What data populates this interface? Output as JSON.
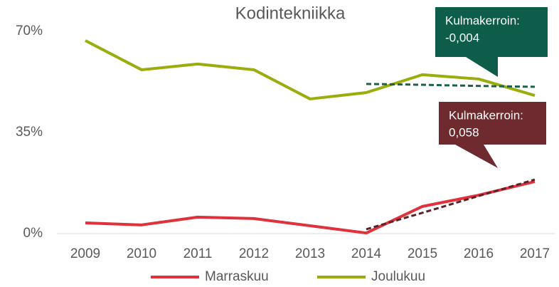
{
  "chart_data": {
    "type": "line",
    "title": "Kodintekniikka",
    "categories": [
      "2009",
      "2010",
      "2011",
      "2012",
      "2013",
      "2014",
      "2015",
      "2016",
      "2017"
    ],
    "series": [
      {
        "name": "Marraskuu",
        "color": "#e0323c",
        "values": [
          3.7,
          3.0,
          5.7,
          5.2,
          2.7,
          0.2,
          9.4,
          13.3,
          18.0
        ]
      },
      {
        "name": "Joulukuu",
        "color": "#9aad0d",
        "values": [
          66.8,
          56.7,
          58.7,
          56.7,
          46.6,
          48.8,
          55.0,
          53.5,
          47.8
        ]
      }
    ],
    "trendlines": [
      {
        "color": "#1d5f4a",
        "values": [
          null,
          null,
          null,
          null,
          null,
          51.8,
          51.5,
          51.1,
          50.8
        ]
      },
      {
        "color": "#5a2328",
        "values": [
          null,
          null,
          null,
          null,
          null,
          1.5,
          7.2,
          13.0,
          18.7
        ]
      }
    ],
    "annotations": [
      {
        "lines": [
          "Kulmakerroin:",
          "-0,004"
        ],
        "color": "#0e5c4a"
      },
      {
        "lines": [
          "Kulmakerroin:",
          "0,058"
        ],
        "color": "#6e2a2f"
      }
    ],
    "ylim": [
      0,
      70
    ],
    "yticks": [
      {
        "value": 0,
        "label": "0%"
      },
      {
        "value": 35,
        "label": "35%"
      },
      {
        "value": 70,
        "label": "70%"
      }
    ],
    "legend": "bottom"
  }
}
